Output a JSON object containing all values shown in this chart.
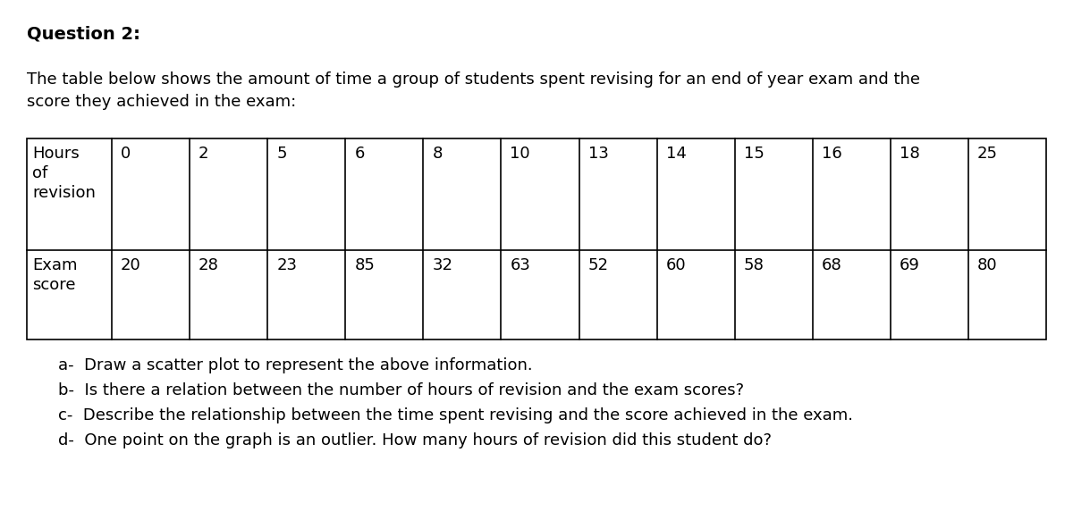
{
  "title": "Question 2:",
  "intro_line1": "The table below shows the amount of time a group of students spent revising for an end of year exam and the",
  "intro_line2": "score they achieved in the exam:",
  "row1_label_lines": [
    "Hours",
    "of",
    "revision"
  ],
  "row2_label_lines": [
    "Exam",
    "score"
  ],
  "hours": [
    0,
    2,
    5,
    6,
    8,
    10,
    13,
    14,
    15,
    16,
    18,
    25
  ],
  "scores": [
    20,
    28,
    23,
    85,
    32,
    63,
    52,
    60,
    58,
    68,
    69,
    80
  ],
  "questions": [
    "a-  Draw a scatter plot to represent the above information.",
    "b-  Is there a relation between the number of hours of revision and the exam scores?",
    "c-  Describe the relationship between the time spent revising and the score achieved in the exam.",
    "d-  One point on the graph is an outlier. How many hours of revision did this student do?"
  ],
  "bg_color": "#ffffff",
  "text_color": "#000000",
  "title_fontsize": 14,
  "body_fontsize": 13,
  "table_fontsize": 13,
  "q_fontsize": 13
}
